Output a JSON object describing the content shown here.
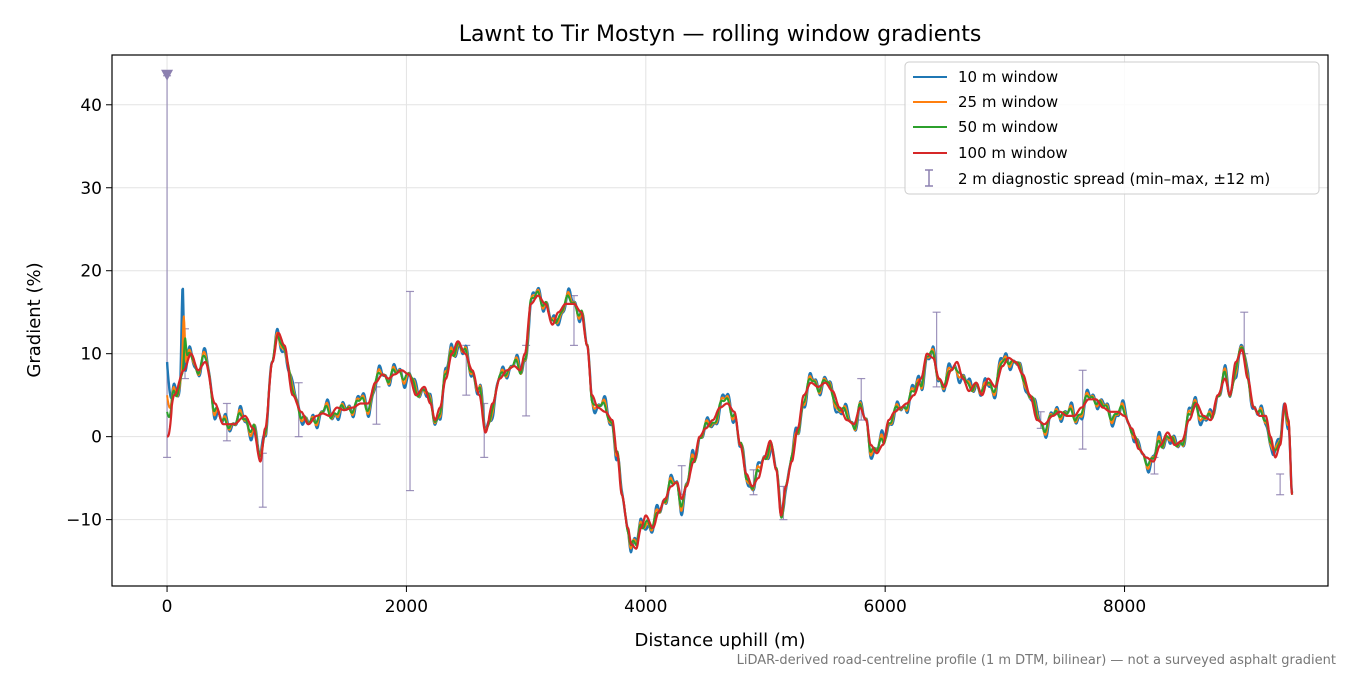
{
  "chart_data": {
    "type": "line",
    "title": "Lawnt to Tir Mostyn — rolling window gradients",
    "xlabel": "Distance uphill (m)",
    "ylabel": "Gradient (%)",
    "xlim": [
      -460,
      9700
    ],
    "ylim": [
      -18,
      46
    ],
    "x_ticks": [
      0,
      2000,
      4000,
      6000,
      8000
    ],
    "x_tick_labels": [
      "0",
      "2000",
      "4000",
      "6000",
      "8000"
    ],
    "y_ticks": [
      -10,
      0,
      10,
      20,
      30,
      40
    ],
    "y_tick_labels": [
      "−10",
      "0",
      "10",
      "20",
      "30",
      "40"
    ],
    "grid": true,
    "legend_position": "top-right",
    "footnote": "LiDAR-derived road-centreline profile (1 m DTM, bilinear) — not a surveyed asphalt gradient",
    "profile_points": [
      [
        0,
        0
      ],
      [
        60,
        5
      ],
      [
        140,
        8
      ],
      [
        200,
        10
      ],
      [
        260,
        8
      ],
      [
        320,
        9
      ],
      [
        400,
        4
      ],
      [
        470,
        1.5
      ],
      [
        560,
        1.5
      ],
      [
        650,
        2.5
      ],
      [
        720,
        1
      ],
      [
        780,
        -3
      ],
      [
        820,
        1
      ],
      [
        880,
        9
      ],
      [
        930,
        12.5
      ],
      [
        980,
        11
      ],
      [
        1050,
        5
      ],
      [
        1120,
        3
      ],
      [
        1180,
        1.5
      ],
      [
        1250,
        2.5
      ],
      [
        1300,
        2.8
      ],
      [
        1360,
        2.5
      ],
      [
        1420,
        3.5
      ],
      [
        1480,
        3.2
      ],
      [
        1550,
        3.5
      ],
      [
        1620,
        4
      ],
      [
        1680,
        4
      ],
      [
        1740,
        6.5
      ],
      [
        1800,
        7.5
      ],
      [
        1850,
        7
      ],
      [
        1900,
        7.5
      ],
      [
        1960,
        8
      ],
      [
        2020,
        7.5
      ],
      [
        2080,
        5
      ],
      [
        2150,
        6
      ],
      [
        2200,
        4
      ],
      [
        2240,
        2
      ],
      [
        2280,
        3.5
      ],
      [
        2330,
        7
      ],
      [
        2380,
        10
      ],
      [
        2430,
        11.5
      ],
      [
        2490,
        10
      ],
      [
        2550,
        8
      ],
      [
        2610,
        5
      ],
      [
        2660,
        0.5
      ],
      [
        2720,
        4
      ],
      [
        2780,
        7
      ],
      [
        2840,
        8
      ],
      [
        2900,
        8.5
      ],
      [
        2950,
        8
      ],
      [
        2990,
        10
      ],
      [
        3040,
        16
      ],
      [
        3100,
        17
      ],
      [
        3160,
        16
      ],
      [
        3220,
        13.5
      ],
      [
        3270,
        15
      ],
      [
        3330,
        16
      ],
      [
        3400,
        16
      ],
      [
        3460,
        15
      ],
      [
        3510,
        11
      ],
      [
        3550,
        5
      ],
      [
        3600,
        3.5
      ],
      [
        3660,
        3
      ],
      [
        3720,
        2
      ],
      [
        3760,
        -2
      ],
      [
        3800,
        -7
      ],
      [
        3850,
        -11
      ],
      [
        3880,
        -13
      ],
      [
        3920,
        -13.5
      ],
      [
        3960,
        -11
      ],
      [
        4000,
        -9.5
      ],
      [
        4060,
        -11
      ],
      [
        4110,
        -9
      ],
      [
        4160,
        -7.5
      ],
      [
        4210,
        -6
      ],
      [
        4260,
        -5.5
      ],
      [
        4300,
        -7.5
      ],
      [
        4340,
        -6
      ],
      [
        4400,
        -3
      ],
      [
        4450,
        0
      ],
      [
        4500,
        1
      ],
      [
        4560,
        2
      ],
      [
        4620,
        3.5
      ],
      [
        4680,
        4
      ],
      [
        4740,
        3
      ],
      [
        4790,
        -1
      ],
      [
        4840,
        -4.5
      ],
      [
        4890,
        -6
      ],
      [
        4940,
        -5
      ],
      [
        4990,
        -2.5
      ],
      [
        5040,
        -0.5
      ],
      [
        5090,
        -4
      ],
      [
        5130,
        -9.5
      ],
      [
        5170,
        -6
      ],
      [
        5220,
        -3
      ],
      [
        5270,
        1
      ],
      [
        5320,
        5
      ],
      [
        5380,
        6.5
      ],
      [
        5440,
        6
      ],
      [
        5500,
        6.5
      ],
      [
        5560,
        5.5
      ],
      [
        5620,
        3.5
      ],
      [
        5680,
        2
      ],
      [
        5740,
        1.5
      ],
      [
        5790,
        3.5
      ],
      [
        5840,
        2
      ],
      [
        5880,
        -1
      ],
      [
        5930,
        -2
      ],
      [
        5980,
        -1
      ],
      [
        6030,
        2
      ],
      [
        6080,
        3
      ],
      [
        6130,
        3.5
      ],
      [
        6180,
        4
      ],
      [
        6240,
        5
      ],
      [
        6300,
        7
      ],
      [
        6350,
        10
      ],
      [
        6400,
        9.5
      ],
      [
        6450,
        7
      ],
      [
        6500,
        6
      ],
      [
        6550,
        8
      ],
      [
        6600,
        9
      ],
      [
        6650,
        7
      ],
      [
        6700,
        5.5
      ],
      [
        6760,
        6.5
      ],
      [
        6810,
        5
      ],
      [
        6860,
        7
      ],
      [
        6920,
        6
      ],
      [
        6980,
        8.5
      ],
      [
        7030,
        9.5
      ],
      [
        7090,
        9
      ],
      [
        7150,
        7.5
      ],
      [
        7210,
        5
      ],
      [
        7270,
        2
      ],
      [
        7330,
        1.5
      ],
      [
        7400,
        2.5
      ],
      [
        7460,
        3
      ],
      [
        7520,
        2.5
      ],
      [
        7580,
        2.5
      ],
      [
        7640,
        3.5
      ],
      [
        7700,
        4.5
      ],
      [
        7760,
        4.5
      ],
      [
        7820,
        3.5
      ],
      [
        7880,
        3
      ],
      [
        7940,
        3
      ],
      [
        8000,
        2.5
      ],
      [
        8060,
        1
      ],
      [
        8120,
        -1.5
      ],
      [
        8180,
        -2.5
      ],
      [
        8240,
        -3
      ],
      [
        8300,
        -1
      ],
      [
        8360,
        0.5
      ],
      [
        8420,
        -1
      ],
      [
        8480,
        -0.5
      ],
      [
        8540,
        2
      ],
      [
        8600,
        4
      ],
      [
        8660,
        2.5
      ],
      [
        8720,
        2
      ],
      [
        8780,
        5
      ],
      [
        8840,
        7
      ],
      [
        8880,
        5
      ],
      [
        8930,
        9
      ],
      [
        8980,
        10.5
      ],
      [
        9030,
        7
      ],
      [
        9080,
        3.5
      ],
      [
        9130,
        2.5
      ],
      [
        9180,
        2.5
      ],
      [
        9220,
        0
      ],
      [
        9260,
        -2.5
      ],
      [
        9300,
        -1
      ],
      [
        9340,
        4
      ],
      [
        9370,
        2
      ],
      [
        9400,
        -7
      ]
    ],
    "series": [
      {
        "name": "10 m window",
        "color": "#1f77b4",
        "amplitude": 1.8,
        "start_value": 9,
        "spike": [
          130,
          18.5
        ]
      },
      {
        "name": "25 m window",
        "color": "#ff7f0e",
        "amplitude": 1.4,
        "start_value": 5,
        "spike": [
          140,
          15
        ]
      },
      {
        "name": "50 m window",
        "color": "#2ca02c",
        "amplitude": 1.0,
        "start_value": 3,
        "spike": [
          150,
          12
        ]
      },
      {
        "name": "100 m window",
        "color": "#d62728",
        "amplitude": 0.0,
        "start_value": 0,
        "spike": null
      }
    ],
    "error_bars": {
      "name": "2 m diagnostic spread (min–max, ±12 m)",
      "color": "#8c80b0",
      "points": [
        [
          0,
          -2.5,
          43.5
        ],
        [
          150,
          7,
          13
        ],
        [
          500,
          -0.5,
          4
        ],
        [
          800,
          -8.5,
          -2
        ],
        [
          1100,
          0,
          6.5
        ],
        [
          1750,
          1.5,
          6
        ],
        [
          2030,
          -6.5,
          17.5
        ],
        [
          2500,
          5,
          11
        ],
        [
          2650,
          -2.5,
          4
        ],
        [
          3000,
          2.5,
          11
        ],
        [
          3400,
          11,
          17
        ],
        [
          4300,
          -7,
          -3.5
        ],
        [
          4900,
          -7,
          -4
        ],
        [
          5150,
          -10,
          -6
        ],
        [
          5800,
          2,
          7
        ],
        [
          6430,
          6,
          15
        ],
        [
          7300,
          1,
          3
        ],
        [
          7650,
          -1.5,
          8
        ],
        [
          8250,
          -4.5,
          -2.5
        ],
        [
          9000,
          10,
          15
        ],
        [
          9300,
          -7,
          -4.5
        ]
      ],
      "top_marker": [
        0,
        43.5
      ]
    }
  }
}
